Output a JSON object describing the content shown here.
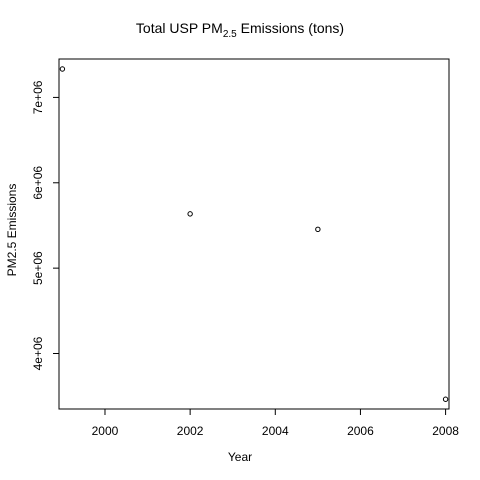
{
  "chart_data": {
    "type": "scatter",
    "title_main": "Total USP PM",
    "title_sub": "2.5",
    "title_rest": " Emissions (tons)",
    "xlabel": "Year",
    "ylabel": "PM2.5 Emissions",
    "xlim": [
      1998.92,
      2008.08
    ],
    "ylim": [
      3350000,
      7450000
    ],
    "x_ticks": [
      2000,
      2002,
      2004,
      2006,
      2008
    ],
    "y_ticks": [
      4000000,
      5000000,
      6000000,
      7000000
    ],
    "y_tick_labels": [
      "4e+06",
      "5e+06",
      "6e+06",
      "7e+06"
    ],
    "grid": false,
    "points": [
      {
        "x": 1999,
        "y": 7332967
      },
      {
        "x": 2002,
        "y": 5635780
      },
      {
        "x": 2005,
        "y": 5454703
      },
      {
        "x": 2008,
        "y": 3464206
      }
    ]
  }
}
